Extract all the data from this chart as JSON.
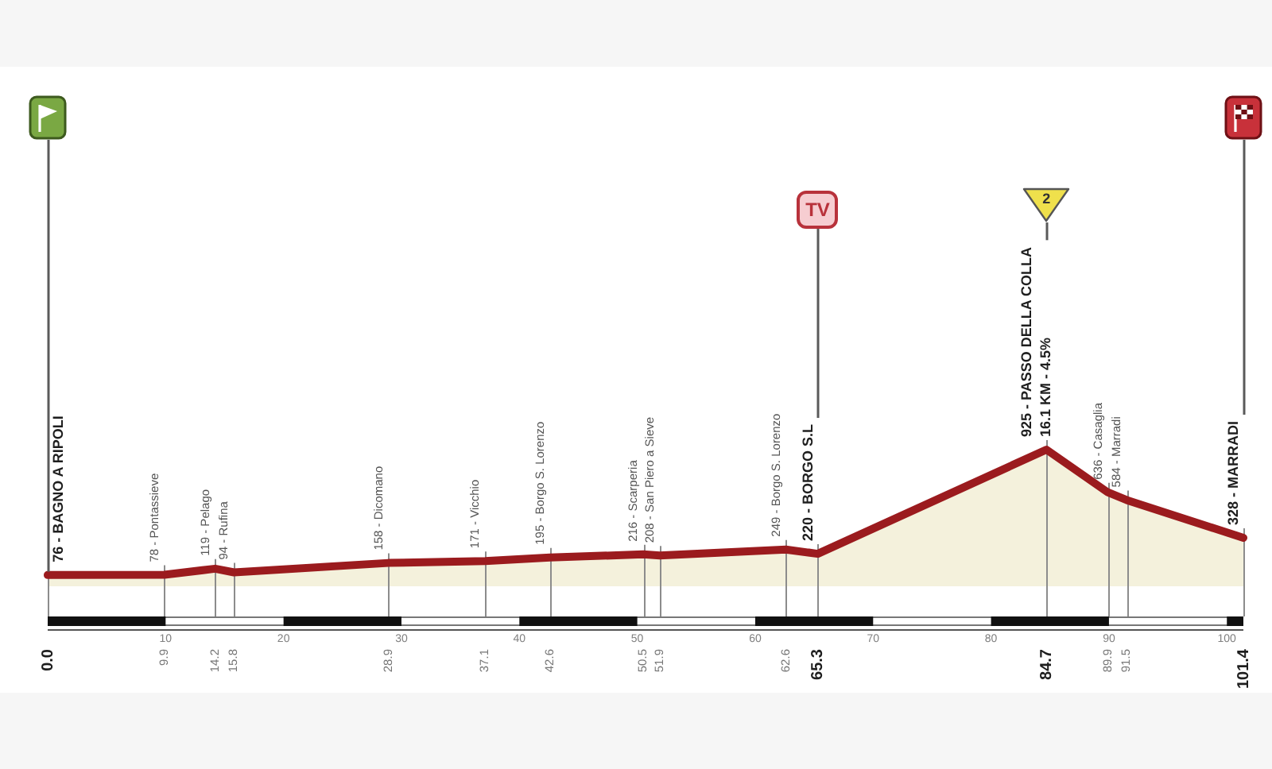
{
  "chart_data": {
    "type": "area",
    "x": [
      0,
      9.9,
      14.2,
      15.8,
      28.9,
      37.1,
      42.6,
      50.5,
      51.9,
      62.6,
      65.3,
      84.7,
      89.9,
      91.5,
      101.4
    ],
    "values": [
      76,
      78,
      119,
      94,
      158,
      171,
      195,
      216,
      208,
      249,
      220,
      925,
      636,
      584,
      328
    ],
    "value_labels": [
      "76 - BAGNO A RIPOLI",
      "78 - Pontassieve",
      "119 - Pelago",
      "94 - Rufina",
      "158 - Dicomano",
      "171 - Vicchio",
      "195 - Borgo S. Lorenzo",
      "216 - Scarperia",
      "208 - San Piero a Sieve",
      "249 - Borgo S. Lorenzo",
      "220 - BORGO S.L",
      "925 - PASSO DELLA COLLA",
      "636 - Casaglia",
      "584 - Marradi",
      "328 - MARRADI"
    ],
    "color": "#9b1b1e",
    "xlim": [
      0,
      101.4
    ],
    "xticks": [
      {
        "value": 0,
        "label": "0.0"
      },
      9.9,
      14.2,
      15.8,
      28.9,
      37.1,
      42.6,
      50.5,
      51.9,
      62.6,
      65.3,
      84.7,
      89.9,
      91.5,
      101.4
    ],
    "x2lim": [
      0,
      101.4
    ],
    "x2ticks": [
      10,
      20,
      30,
      40,
      50,
      60,
      70,
      80,
      90,
      100
    ],
    "tick_labels": "x",
    "ref_lines": [
      {
        "axis": "x",
        "value": 0
      },
      {
        "axis": "x",
        "value": 65.3
      },
      {
        "axis": "x",
        "value": 84.7
      },
      {
        "axis": "x",
        "value": 101.4
      }
    ],
    "annotations": [
      "TV",
      "2",
      {
        "text": "16.1 KM - 4.5%",
        "x": 84.7,
        "y": 925
      }
    ]
  }
}
